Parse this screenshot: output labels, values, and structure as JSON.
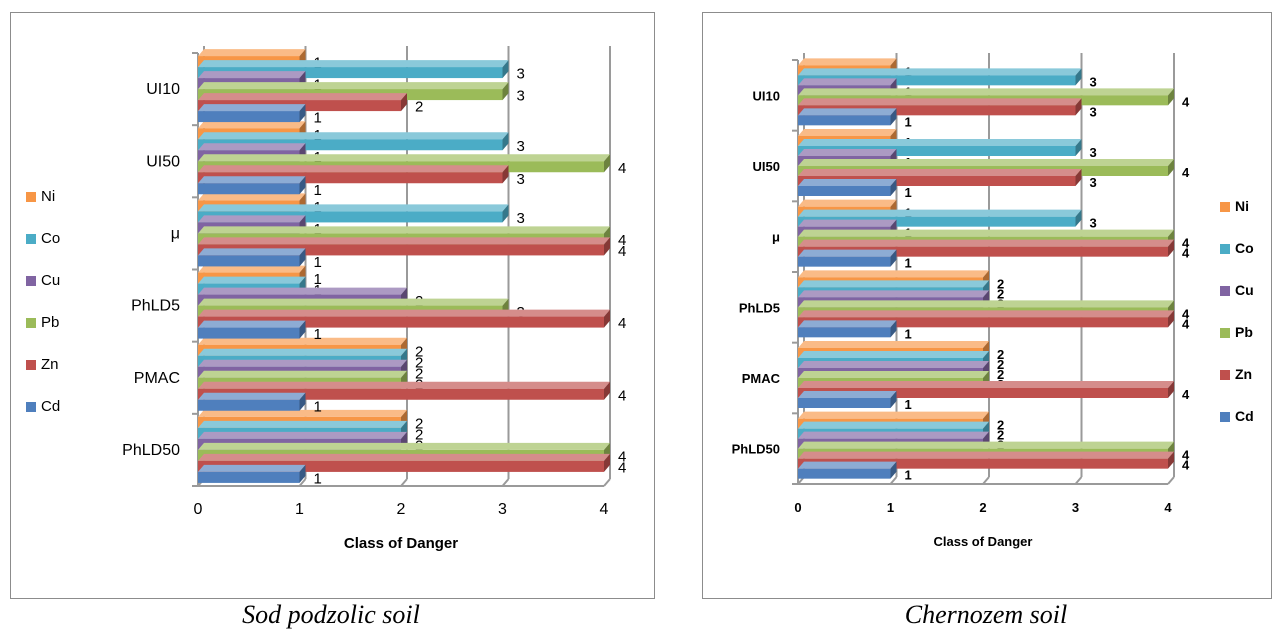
{
  "chart_data": [
    {
      "type": "bar",
      "orientation": "horizontal",
      "variant": "3d-clustered",
      "caption": "Sod podzolic soil",
      "xlabel": "Class of Danger",
      "ylabel": "",
      "xlim": [
        0,
        4
      ],
      "xticks": [
        "0",
        "1",
        "2",
        "3",
        "4"
      ],
      "grid": true,
      "legend_position": "left",
      "categories": [
        "PhLD50",
        "PMAC",
        "PhLD5",
        "μ",
        "UI50",
        "UI10"
      ],
      "series": [
        {
          "name": "Cd",
          "color": "#4f7fbd",
          "values": [
            1,
            1,
            1,
            1,
            1,
            1
          ]
        },
        {
          "name": "Zn",
          "color": "#bf504d",
          "values": [
            4,
            4,
            4,
            4,
            3,
            2
          ]
        },
        {
          "name": "Pb",
          "color": "#9bbb59",
          "values": [
            4,
            2,
            3,
            4,
            4,
            3
          ]
        },
        {
          "name": "Cu",
          "color": "#8064a2",
          "values": [
            2,
            2,
            2,
            1,
            1,
            1
          ]
        },
        {
          "name": "Co",
          "color": "#4bacc6",
          "values": [
            2,
            2,
            1,
            3,
            3,
            3
          ]
        },
        {
          "name": "Ni",
          "color": "#f79646",
          "values": [
            2,
            2,
            1,
            1,
            1,
            1
          ]
        }
      ]
    },
    {
      "type": "bar",
      "orientation": "horizontal",
      "variant": "3d-clustered",
      "caption": "Chernozem soil",
      "xlabel": "Class of Danger",
      "ylabel": "",
      "xlim": [
        0,
        4
      ],
      "xticks": [
        "0",
        "1",
        "2",
        "3",
        "4"
      ],
      "grid": true,
      "legend_position": "right",
      "categories": [
        "PhLD50",
        "PMAC",
        "PhLD5",
        "μ",
        "UI50",
        "UI10"
      ],
      "series": [
        {
          "name": "Cd",
          "color": "#4f7fbd",
          "values": [
            1,
            1,
            1,
            1,
            1,
            1
          ]
        },
        {
          "name": "Zn",
          "color": "#bf504d",
          "values": [
            4,
            4,
            4,
            4,
            3,
            3
          ]
        },
        {
          "name": "Pb",
          "color": "#9bbb59",
          "values": [
            4,
            2,
            4,
            4,
            4,
            4
          ]
        },
        {
          "name": "Cu",
          "color": "#8064a2",
          "values": [
            2,
            2,
            2,
            1,
            1,
            1
          ]
        },
        {
          "name": "Co",
          "color": "#4bacc6",
          "values": [
            2,
            2,
            2,
            3,
            3,
            3
          ]
        },
        {
          "name": "Ni",
          "color": "#f79646",
          "values": [
            2,
            2,
            2,
            1,
            1,
            1
          ]
        }
      ]
    }
  ]
}
